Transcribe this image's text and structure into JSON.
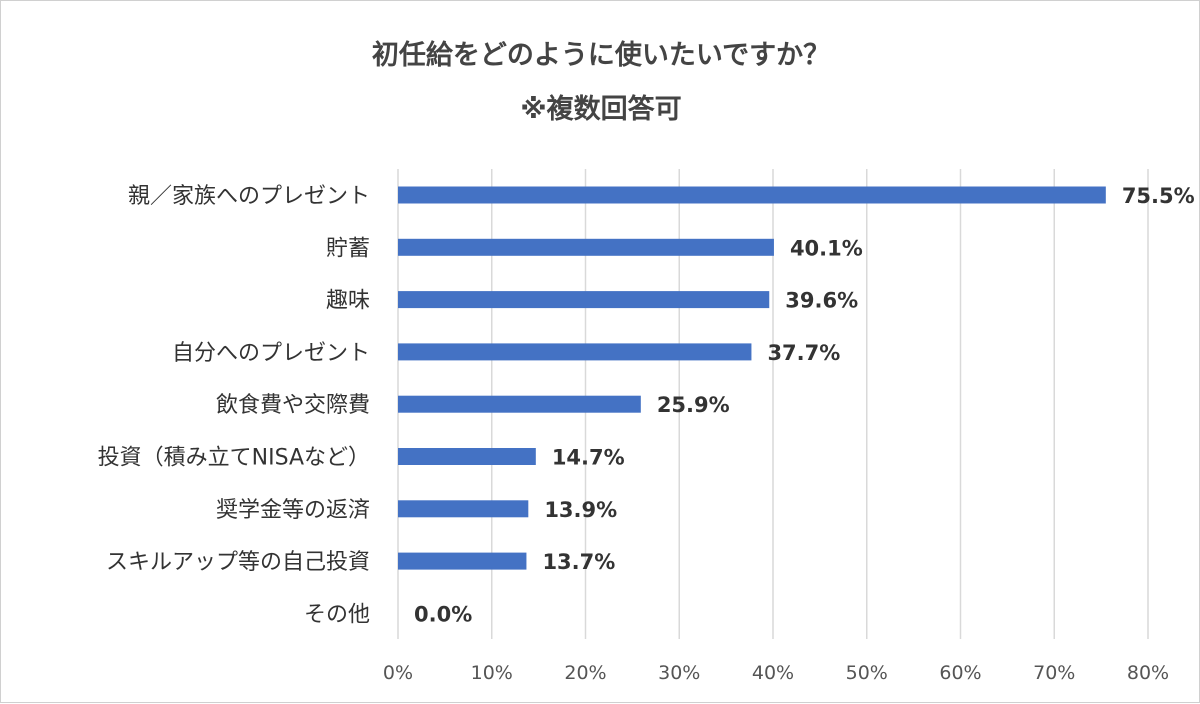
{
  "chart_data": {
    "type": "bar",
    "orientation": "horizontal",
    "title": "初任給をどのように使いたいですか？",
    "subtitle": "※複数回答可",
    "categories": [
      "親／家族へのプレゼント",
      "貯蓄",
      "趣味",
      "自分へのプレゼント",
      "飲食費や交際費",
      "投資（積み立てNISAなど）",
      "奨学金等の返済",
      "スキルアップ等の自己投資",
      "その他"
    ],
    "values": [
      75.5,
      40.1,
      39.6,
      37.7,
      25.9,
      14.7,
      13.9,
      13.7,
      0.0
    ],
    "value_labels": [
      "75.5%",
      "40.1%",
      "39.6%",
      "37.7%",
      "25.9%",
      "14.7%",
      "13.9%",
      "13.7%",
      "0.0%"
    ],
    "xlim": [
      0,
      80
    ],
    "x_ticks": [
      "0%",
      "10%",
      "20%",
      "30%",
      "40%",
      "50%",
      "60%",
      "70%",
      "80%"
    ],
    "grid": "vertical",
    "legend": "none",
    "bar_color": "#4472C4",
    "grid_color": "#d9d9d9"
  }
}
